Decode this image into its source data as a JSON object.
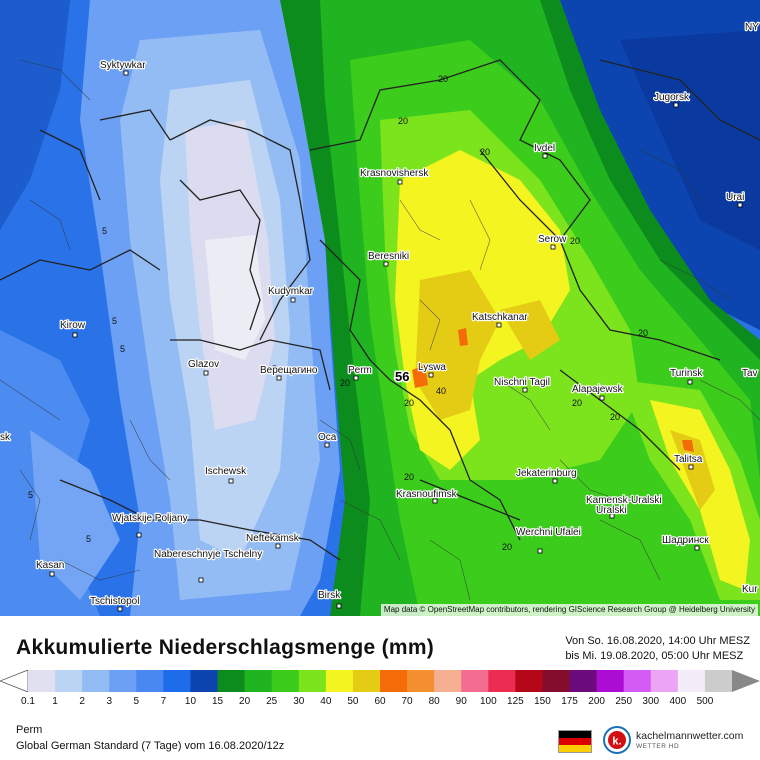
{
  "map": {
    "attribution": "Map data © OpenStreetMap contributors, rendering GIScience Research Group @ Heidelberg University",
    "max_value": "56",
    "cities": [
      {
        "name": "Syktywkar"
      },
      {
        "name": "Jugorsk"
      },
      {
        "name": "Ivdel"
      },
      {
        "name": "Krasnovishersk"
      },
      {
        "name": "Urai"
      },
      {
        "name": "Serow"
      },
      {
        "name": "Beresniki"
      },
      {
        "name": "Kudymkar"
      },
      {
        "name": "Kirow"
      },
      {
        "name": "Katschkanar"
      },
      {
        "name": "Glazov"
      },
      {
        "name": "Верещагино"
      },
      {
        "name": "Perm"
      },
      {
        "name": "Lyswa"
      },
      {
        "name": "Nischni Tagil"
      },
      {
        "name": "Alapajewsk"
      },
      {
        "name": "Turinsk"
      },
      {
        "name": "Tav"
      },
      {
        "name": "Oca"
      },
      {
        "name": "Talitsa"
      },
      {
        "name": "Ischewsk"
      },
      {
        "name": "Jekaterinburg"
      },
      {
        "name": "Krasnoufimsk"
      },
      {
        "name": "Kamensk-Uralski"
      },
      {
        "name": "Wjatskije Poljany"
      },
      {
        "name": "Neftekamsk"
      },
      {
        "name": "Werchni Ufalei"
      },
      {
        "name": "Nabereschnyje Tschelny"
      },
      {
        "name": "Шадринск"
      },
      {
        "name": "Kasan"
      },
      {
        "name": "Tschistopol"
      },
      {
        "name": "Birsk"
      },
      {
        "name": "Kur"
      },
      {
        "name": "sk"
      },
      {
        "name": "NY"
      }
    ],
    "contour_labels": [
      "20",
      "20",
      "20",
      "20",
      "20",
      "20",
      "20",
      "20",
      "20",
      "20",
      "20",
      "40",
      "5",
      "5",
      "5",
      "5",
      "5",
      "5"
    ]
  },
  "legend": {
    "title": "Akkumulierte Niederschlagsmenge (mm)",
    "period_line1": "Von So. 16.08.2020, 14:00 Uhr MESZ",
    "period_line2": "bis Mi. 19.08.2020, 05:00 Uhr MESZ",
    "values": [
      "0.1",
      "1",
      "2",
      "3",
      "5",
      "7",
      "10",
      "15",
      "20",
      "25",
      "30",
      "40",
      "50",
      "60",
      "70",
      "80",
      "90",
      "100",
      "125",
      "150",
      "175",
      "200",
      "250",
      "300",
      "400",
      "500"
    ],
    "colors": [
      "#e0e0f0",
      "#bcd4f4",
      "#94bcf4",
      "#6ca0f4",
      "#4888f0",
      "#1c6cec",
      "#0c44b0",
      "#0c8c1c",
      "#20b420",
      "#3ccc1c",
      "#7ce41c",
      "#f4f420",
      "#e4cc14",
      "#f46c08",
      "#f49030",
      "#f4b090",
      "#f46c90",
      "#ec2c50",
      "#b40818",
      "#840c2c",
      "#6c0c7c",
      "#ac0cd4",
      "#d45cf4",
      "#eca4f4",
      "#f4ecf8",
      "#cccccc"
    ]
  },
  "footer": {
    "location": "Perm",
    "model": "Global German Standard (7 Tage) vom 16.08.2020/12z",
    "brand_name": "kachelmannwetter.com",
    "brand_sub": "WETTER HD",
    "brand_letter": "k."
  }
}
